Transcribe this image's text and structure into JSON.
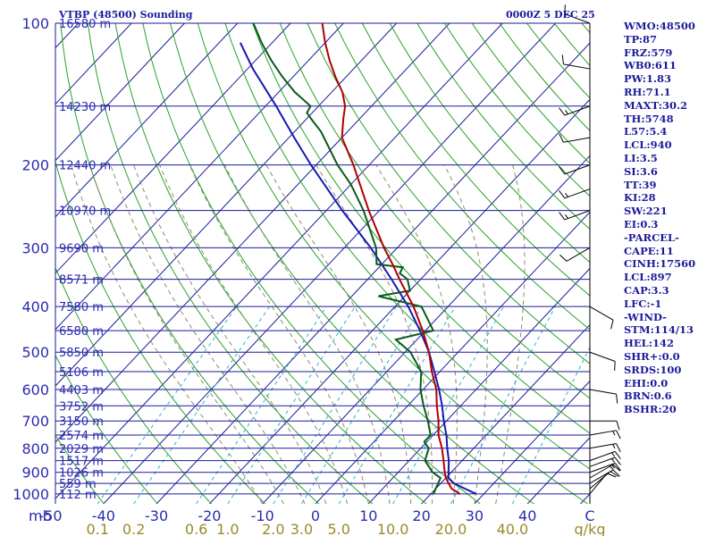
{
  "header": {
    "station": "VTBP (48500) Sounding",
    "time": "0000Z  5 DEC 25"
  },
  "indices": [
    "WMO:48500",
    "TP:87",
    "FRZ:579",
    "WB0:611",
    "PW:1.83",
    "RH:71.1",
    "MAXT:30.2",
    "TH:5748",
    "L57:5.4",
    "LCL:940",
    "LI:3.5",
    "SI:3.6",
    "TT:39",
    "KI:28",
    "SW:221",
    "EI:0.3",
    "-PARCEL-",
    "CAPE:11",
    "CINH:17560",
    "LCL:897",
    "CAP:3.3",
    "LFC:-1",
    "-WIND-",
    "STM:114/13",
    "HEL:142",
    "SHR+:0.0",
    "SRDS:100",
    "EHI:0.0",
    "BRN:0.6",
    "BSHR:20"
  ],
  "colors": {
    "isobar": "#1a1a9a",
    "isotherm": "#1a1a9a",
    "dry_adiabat": "#2aa02a",
    "moist_adiabat": "#8c8c6a",
    "mixing_ratio": "#2ab0d0",
    "temperature": "#b00000",
    "dewpoint": "#0a5a1a",
    "parcel": "#1818b0",
    "wind_barb": "#000000"
  },
  "chart_data": {
    "type": "skew-t log-p sounding",
    "pressure_levels_hPa": [
      100,
      200,
      300,
      400,
      500,
      600,
      700,
      800,
      900,
      1000
    ],
    "height_labels": [
      {
        "p": 150,
        "label": "14230 m"
      },
      {
        "p": 200,
        "label": "12440 m"
      },
      {
        "p": 250,
        "label": "10970 m"
      },
      {
        "p": 300,
        "label": "9690 m"
      },
      {
        "p": 350,
        "label": "8571 m"
      },
      {
        "p": 400,
        "label": "7580 m"
      },
      {
        "p": 450,
        "label": "6580 m"
      },
      {
        "p": 500,
        "label": "5850 m"
      },
      {
        "p": 550,
        "label": "5106 m"
      },
      {
        "p": 600,
        "label": "4403 m"
      },
      {
        "p": 650,
        "label": "3752 m"
      },
      {
        "p": 700,
        "label": "3150 m"
      },
      {
        "p": 750,
        "label": "2574 m"
      },
      {
        "p": 800,
        "label": "2029 m"
      },
      {
        "p": 850,
        "label": "1517 m"
      },
      {
        "p": 900,
        "label": "1026 m"
      },
      {
        "p": 950,
        "label": "559 m"
      },
      {
        "p": 1000,
        "label": "112 m"
      }
    ],
    "top_height_label": "16580 m",
    "x_axis_unit": "mb",
    "temperature_ticks_C": [
      -50,
      -40,
      -30,
      -20,
      -10,
      0,
      10,
      20,
      30,
      40
    ],
    "mixing_ratio_unit": "g/kg",
    "mixing_ratio_ticks": [
      "0.1",
      "0.2",
      "0.6",
      "1.0",
      "2.0",
      "3.0",
      "5.0",
      "10.0",
      "20.0",
      "40.0"
    ],
    "mixing_ratio_values": [
      0.1,
      0.2,
      0.6,
      1.0,
      2.0,
      3.0,
      5.0,
      10.0,
      20.0,
      40.0
    ],
    "xlim_C_at_1000hPa": [
      -50,
      50
    ],
    "pressure_range_hPa": [
      100,
      1050
    ],
    "log_pressure": true,
    "temperature_profile": [
      {
        "p": 1000,
        "t": 25.5
      },
      {
        "p": 975,
        "t": 23.0
      },
      {
        "p": 950,
        "t": 21.5
      },
      {
        "p": 925,
        "t": 20.0
      },
      {
        "p": 900,
        "t": 18.8
      },
      {
        "p": 850,
        "t": 16.5
      },
      {
        "p": 800,
        "t": 14.0
      },
      {
        "p": 750,
        "t": 11.0
      },
      {
        "p": 700,
        "t": 8.5
      },
      {
        "p": 650,
        "t": 5.5
      },
      {
        "p": 600,
        "t": 2.5
      },
      {
        "p": 550,
        "t": -1.5
      },
      {
        "p": 500,
        "t": -5.5
      },
      {
        "p": 450,
        "t": -10.5
      },
      {
        "p": 400,
        "t": -16.5
      },
      {
        "p": 350,
        "t": -24.0
      },
      {
        "p": 325,
        "t": -28.0
      },
      {
        "p": 300,
        "t": -32.5
      },
      {
        "p": 250,
        "t": -42.0
      },
      {
        "p": 200,
        "t": -53.0
      },
      {
        "p": 175,
        "t": -60.0
      },
      {
        "p": 160,
        "t": -63.0
      },
      {
        "p": 150,
        "t": -65.0
      },
      {
        "p": 140,
        "t": -68.0
      },
      {
        "p": 130,
        "t": -72.0
      },
      {
        "p": 120,
        "t": -76.0
      },
      {
        "p": 110,
        "t": -80.0
      },
      {
        "p": 100,
        "t": -84.0
      }
    ],
    "dewpoint_profile": [
      {
        "p": 1000,
        "t": 20.5
      },
      {
        "p": 975,
        "t": 20.0
      },
      {
        "p": 950,
        "t": 19.5
      },
      {
        "p": 925,
        "t": 19.0
      },
      {
        "p": 900,
        "t": 16.5
      },
      {
        "p": 850,
        "t": 13.0
      },
      {
        "p": 800,
        "t": 11.5
      },
      {
        "p": 775,
        "t": 9.5
      },
      {
        "p": 750,
        "t": 9.5
      },
      {
        "p": 700,
        "t": 6.5
      },
      {
        "p": 650,
        "t": 3.0
      },
      {
        "p": 600,
        "t": -0.5
      },
      {
        "p": 550,
        "t": -3.5
      },
      {
        "p": 500,
        "t": -9.0
      },
      {
        "p": 470,
        "t": -14.0
      },
      {
        "p": 450,
        "t": -8.5
      },
      {
        "p": 400,
        "t": -15.0
      },
      {
        "p": 380,
        "t": -25.0
      },
      {
        "p": 370,
        "t": -20.0
      },
      {
        "p": 350,
        "t": -22.5
      },
      {
        "p": 340,
        "t": -25.0
      },
      {
        "p": 330,
        "t": -25.5
      },
      {
        "p": 325,
        "t": -31.0
      },
      {
        "p": 300,
        "t": -34.0
      },
      {
        "p": 250,
        "t": -43.0
      },
      {
        "p": 220,
        "t": -50.0
      },
      {
        "p": 200,
        "t": -56.0
      },
      {
        "p": 170,
        "t": -65.0
      },
      {
        "p": 160,
        "t": -69.0
      },
      {
        "p": 155,
        "t": -71.0
      },
      {
        "p": 150,
        "t": -71.5
      },
      {
        "p": 140,
        "t": -77.0
      },
      {
        "p": 130,
        "t": -82.0
      },
      {
        "p": 120,
        "t": -87.0
      },
      {
        "p": 110,
        "t": -92.0
      },
      {
        "p": 100,
        "t": -97.0
      }
    ],
    "parcel_profile": [
      {
        "p": 1000,
        "t": 28.5
      },
      {
        "p": 975,
        "t": 25.5
      },
      {
        "p": 950,
        "t": 22.5
      },
      {
        "p": 925,
        "t": 20.5
      },
      {
        "p": 900,
        "t": 19.5
      },
      {
        "p": 850,
        "t": 17.5
      },
      {
        "p": 800,
        "t": 15.0
      },
      {
        "p": 750,
        "t": 12.5
      },
      {
        "p": 700,
        "t": 9.5
      },
      {
        "p": 650,
        "t": 6.5
      },
      {
        "p": 600,
        "t": 3.0
      },
      {
        "p": 550,
        "t": -1.0
      },
      {
        "p": 500,
        "t": -5.5
      },
      {
        "p": 450,
        "t": -11.0
      },
      {
        "p": 400,
        "t": -17.5
      },
      {
        "p": 350,
        "t": -25.5
      },
      {
        "p": 300,
        "t": -35.0
      },
      {
        "p": 250,
        "t": -47.0
      },
      {
        "p": 200,
        "t": -61.0
      },
      {
        "p": 175,
        "t": -69.0
      },
      {
        "p": 150,
        "t": -78.0
      },
      {
        "p": 125,
        "t": -89.0
      },
      {
        "p": 110,
        "t": -96.0
      }
    ],
    "wind_barbs": [
      {
        "p": 1000,
        "dir": 40,
        "kt": 10
      },
      {
        "p": 975,
        "dir": 50,
        "kt": 10
      },
      {
        "p": 950,
        "dir": 60,
        "kt": 10
      },
      {
        "p": 925,
        "dir": 60,
        "kt": 15
      },
      {
        "p": 900,
        "dir": 70,
        "kt": 15
      },
      {
        "p": 875,
        "dir": 70,
        "kt": 15
      },
      {
        "p": 850,
        "dir": 70,
        "kt": 15
      },
      {
        "p": 800,
        "dir": 80,
        "kt": 15
      },
      {
        "p": 750,
        "dir": 80,
        "kt": 15
      },
      {
        "p": 700,
        "dir": 90,
        "kt": 10
      },
      {
        "p": 600,
        "dir": 100,
        "kt": 10
      },
      {
        "p": 500,
        "dir": 110,
        "kt": 10
      },
      {
        "p": 400,
        "dir": 120,
        "kt": 10
      },
      {
        "p": 300,
        "dir": 240,
        "kt": 10
      },
      {
        "p": 250,
        "dir": 250,
        "kt": 15
      },
      {
        "p": 225,
        "dir": 250,
        "kt": 15
      },
      {
        "p": 200,
        "dir": 250,
        "kt": 10
      },
      {
        "p": 175,
        "dir": 260,
        "kt": 10
      },
      {
        "p": 150,
        "dir": 250,
        "kt": 15
      },
      {
        "p": 125,
        "dir": 280,
        "kt": 10
      },
      {
        "p": 100,
        "dir": 290,
        "kt": 10
      }
    ]
  }
}
